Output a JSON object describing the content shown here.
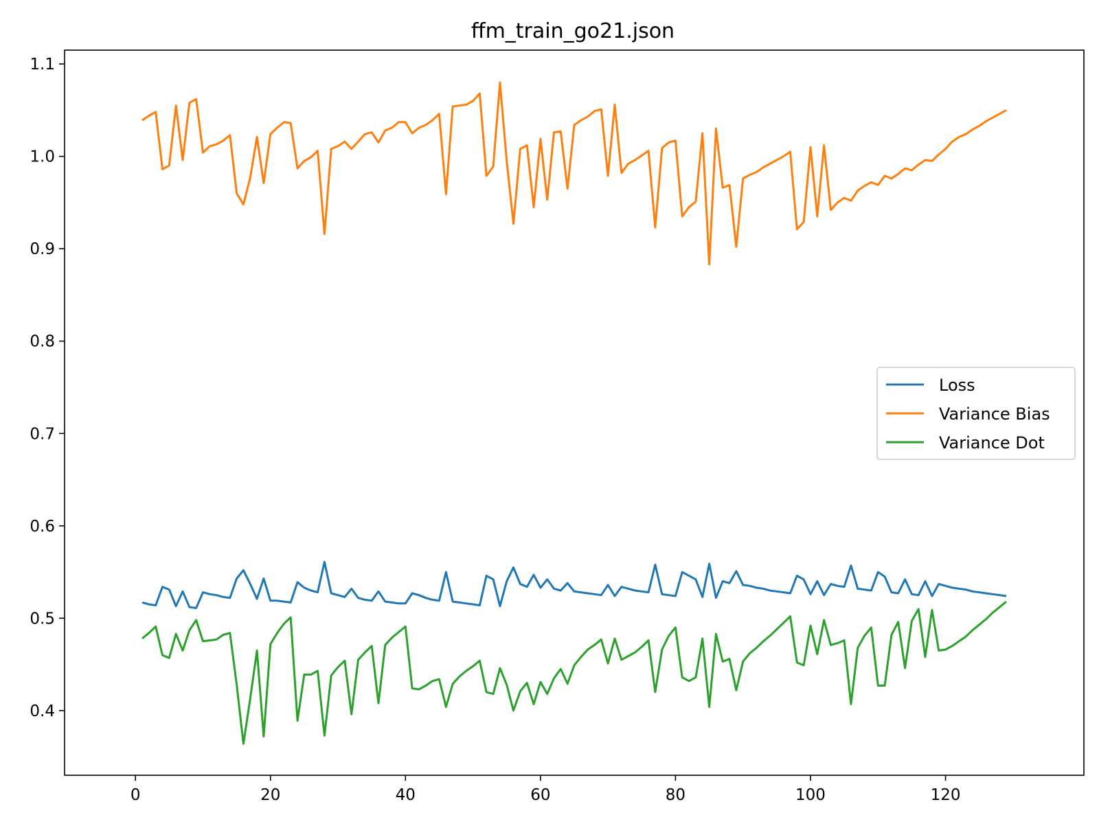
{
  "chart_data": {
    "type": "line",
    "title": "ffm_train_go21.json",
    "xlabel": "",
    "ylabel": "",
    "xlim": [
      -10.5,
      140.5
    ],
    "ylim": [
      0.33,
      1.115
    ],
    "xticks": [
      0,
      20,
      40,
      60,
      80,
      100,
      120
    ],
    "yticks": [
      0.4,
      0.5,
      0.6,
      0.7,
      0.8,
      0.9,
      1.0,
      1.1
    ],
    "ytick_labels": [
      "0.4",
      "0.5",
      "0.6",
      "0.7",
      "0.8",
      "0.9",
      "1.0",
      "1.1"
    ],
    "grid": false,
    "legend_placement": "center-right",
    "x": [
      1,
      2,
      3,
      4,
      5,
      6,
      7,
      8,
      9,
      10,
      11,
      12,
      13,
      14,
      15,
      16,
      17,
      18,
      19,
      20,
      21,
      22,
      23,
      24,
      25,
      26,
      27,
      28,
      29,
      30,
      31,
      32,
      33,
      34,
      35,
      36,
      37,
      38,
      39,
      40,
      41,
      42,
      43,
      44,
      45,
      46,
      47,
      48,
      49,
      50,
      51,
      52,
      53,
      54,
      55,
      56,
      57,
      58,
      59,
      60,
      61,
      62,
      63,
      64,
      65,
      66,
      67,
      68,
      69,
      70,
      71,
      72,
      73,
      74,
      75,
      76,
      77,
      78,
      79,
      80,
      81,
      82,
      83,
      84,
      85,
      86,
      87,
      88,
      89,
      90,
      91,
      92,
      93,
      94,
      95,
      96,
      97,
      98,
      99,
      100,
      101,
      102,
      103,
      104,
      105,
      106,
      107,
      108,
      109,
      110,
      111,
      112,
      113,
      114,
      115,
      116,
      117,
      118,
      119,
      120,
      121,
      122,
      123,
      124,
      125,
      126,
      127,
      128,
      129
    ],
    "series": [
      {
        "name": "Loss",
        "color": "#1f77b4",
        "values": [
          0.517,
          0.515,
          0.514,
          0.534,
          0.531,
          0.513,
          0.529,
          0.512,
          0.511,
          0.528,
          0.526,
          0.525,
          0.523,
          0.522,
          0.543,
          0.552,
          0.537,
          0.521,
          0.543,
          0.519,
          0.519,
          0.518,
          0.517,
          0.539,
          0.533,
          0.53,
          0.528,
          0.561,
          0.527,
          0.525,
          0.523,
          0.532,
          0.522,
          0.52,
          0.519,
          0.529,
          0.518,
          0.517,
          0.516,
          0.516,
          0.527,
          0.525,
          0.522,
          0.52,
          0.519,
          0.55,
          0.518,
          0.517,
          0.516,
          0.515,
          0.514,
          0.546,
          0.542,
          0.513,
          0.54,
          0.555,
          0.537,
          0.534,
          0.547,
          0.533,
          0.542,
          0.532,
          0.53,
          0.538,
          0.529,
          0.528,
          0.527,
          0.526,
          0.525,
          0.536,
          0.524,
          0.534,
          0.532,
          0.53,
          0.529,
          0.528,
          0.558,
          0.526,
          0.525,
          0.524,
          0.55,
          0.546,
          0.542,
          0.523,
          0.559,
          0.522,
          0.54,
          0.538,
          0.551,
          0.536,
          0.535,
          0.533,
          0.532,
          0.53,
          0.529,
          0.528,
          0.527,
          0.546,
          0.542,
          0.526,
          0.54,
          0.525,
          0.537,
          0.535,
          0.534,
          0.557,
          0.532,
          0.531,
          0.53,
          0.55,
          0.545,
          0.528,
          0.527,
          0.542,
          0.526,
          0.525,
          0.54,
          0.524,
          0.537,
          0.535,
          0.533,
          0.532,
          0.531,
          0.529,
          0.528,
          0.527,
          0.526,
          0.525,
          0.524
        ]
      },
      {
        "name": "Variance Bias",
        "color": "#ff7f0e",
        "values": [
          1.039,
          1.044,
          1.048,
          0.986,
          0.99,
          1.055,
          0.996,
          1.058,
          1.062,
          1.004,
          1.011,
          1.013,
          1.017,
          1.023,
          0.96,
          0.948,
          0.977,
          1.021,
          0.971,
          1.024,
          1.031,
          1.037,
          1.036,
          0.987,
          0.995,
          0.999,
          1.006,
          0.916,
          1.008,
          1.011,
          1.016,
          1.008,
          1.016,
          1.024,
          1.026,
          1.015,
          1.028,
          1.031,
          1.037,
          1.037,
          1.025,
          1.031,
          1.034,
          1.039,
          1.046,
          0.959,
          1.054,
          1.055,
          1.056,
          1.06,
          1.068,
          0.979,
          0.989,
          1.08,
          0.995,
          0.927,
          1.008,
          1.012,
          0.945,
          1.019,
          0.953,
          1.026,
          1.027,
          0.965,
          1.034,
          1.039,
          1.043,
          1.049,
          1.051,
          0.979,
          1.056,
          0.982,
          0.992,
          0.996,
          1.001,
          1.006,
          0.923,
          1.009,
          1.015,
          1.017,
          0.935,
          0.945,
          0.951,
          1.025,
          0.883,
          1.03,
          0.966,
          0.969,
          0.902,
          0.976,
          0.98,
          0.983,
          0.988,
          0.992,
          0.996,
          1.0,
          1.005,
          0.921,
          0.929,
          1.01,
          0.935,
          1.012,
          0.942,
          0.95,
          0.955,
          0.952,
          0.963,
          0.968,
          0.972,
          0.969,
          0.979,
          0.976,
          0.981,
          0.987,
          0.985,
          0.991,
          0.996,
          0.995,
          1.002,
          1.008,
          1.016,
          1.021,
          1.024,
          1.029,
          1.033,
          1.038,
          1.042,
          1.046,
          1.05
        ]
      },
      {
        "name": "Variance Dot",
        "color": "#2ca02c",
        "values": [
          0.478,
          0.484,
          0.491,
          0.46,
          0.457,
          0.483,
          0.465,
          0.487,
          0.498,
          0.475,
          0.476,
          0.477,
          0.482,
          0.484,
          0.428,
          0.364,
          0.413,
          0.465,
          0.372,
          0.472,
          0.484,
          0.494,
          0.501,
          0.389,
          0.439,
          0.439,
          0.443,
          0.373,
          0.438,
          0.447,
          0.454,
          0.396,
          0.455,
          0.463,
          0.47,
          0.408,
          0.471,
          0.479,
          0.485,
          0.491,
          0.424,
          0.423,
          0.427,
          0.432,
          0.434,
          0.404,
          0.429,
          0.437,
          0.443,
          0.448,
          0.454,
          0.42,
          0.418,
          0.446,
          0.428,
          0.4,
          0.421,
          0.43,
          0.407,
          0.431,
          0.418,
          0.435,
          0.445,
          0.429,
          0.449,
          0.458,
          0.466,
          0.471,
          0.477,
          0.451,
          0.478,
          0.455,
          0.459,
          0.463,
          0.469,
          0.476,
          0.42,
          0.466,
          0.481,
          0.49,
          0.436,
          0.432,
          0.436,
          0.478,
          0.404,
          0.483,
          0.453,
          0.456,
          0.422,
          0.453,
          0.462,
          0.468,
          0.475,
          0.481,
          0.488,
          0.495,
          0.502,
          0.452,
          0.449,
          0.492,
          0.461,
          0.498,
          0.471,
          0.473,
          0.476,
          0.407,
          0.468,
          0.481,
          0.49,
          0.427,
          0.427,
          0.482,
          0.496,
          0.446,
          0.497,
          0.51,
          0.458,
          0.509,
          0.465,
          0.466,
          0.47,
          0.475,
          0.48,
          0.487,
          0.493,
          0.499,
          0.506,
          0.512,
          0.518
        ]
      }
    ]
  }
}
